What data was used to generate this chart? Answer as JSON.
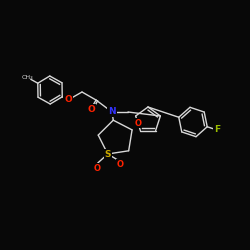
{
  "background": "#080808",
  "bond_color": "#d8d8d8",
  "atom_colors": {
    "N": "#3333ff",
    "O": "#ff2200",
    "S": "#ccaa00",
    "F": "#99bb00"
  },
  "figsize": [
    2.5,
    2.5
  ],
  "dpi": 100
}
